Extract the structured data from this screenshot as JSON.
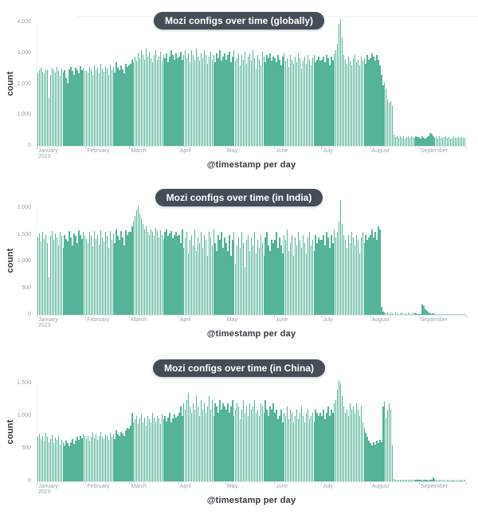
{
  "colors": {
    "bar": "#54b399",
    "pill_bg": "#454e58",
    "pill_text": "#ffffff",
    "tick_text": "#9aa5b2",
    "axis_title_text": "#343741",
    "axis_line": "#dde3ea"
  },
  "x_axis": {
    "total_days": 273,
    "months": [
      {
        "label": "January",
        "year": "2023",
        "day": 0
      },
      {
        "label": "February",
        "day": 31
      },
      {
        "label": "March",
        "day": 59
      },
      {
        "label": "April",
        "day": 90
      },
      {
        "label": "May",
        "day": 120
      },
      {
        "label": "June",
        "day": 151
      },
      {
        "label": "July",
        "day": 181
      },
      {
        "label": "August",
        "day": 212
      },
      {
        "label": "September",
        "day": 243
      }
    ]
  },
  "chart_data": [
    {
      "type": "bar",
      "title": "Mozi configs over time (globally)",
      "xlabel": "@timestamp per day",
      "ylabel": "count",
      "x_start": "January 2023",
      "x_end": "late September 2023",
      "ylim": [
        0,
        4000
      ],
      "yticks": [
        0,
        1000,
        2000,
        3000,
        4000
      ],
      "ytick_labels": [
        "0",
        "1,000",
        "2,000",
        "3,000",
        "4,000"
      ],
      "values": [
        2380,
        2450,
        2520,
        2410,
        2350,
        2480,
        2440,
        1560,
        2300,
        2520,
        2460,
        2380,
        2550,
        2420,
        2280,
        2500,
        2380,
        2450,
        2200,
        2050,
        2480,
        2560,
        2420,
        2300,
        2520,
        2460,
        2350,
        2580,
        2440,
        2500,
        2430,
        2420,
        2380,
        2550,
        2480,
        2300,
        2600,
        2450,
        2520,
        2360,
        2650,
        2480,
        2400,
        2580,
        2500,
        2300,
        2620,
        2450,
        2550,
        2380,
        2700,
        2520,
        2440,
        2600,
        2480,
        2350,
        2650,
        2550,
        2600,
        2650,
        2800,
        2700,
        2900,
        2750,
        3000,
        2850,
        3100,
        2950,
        2800,
        3150,
        2900,
        3050,
        2850,
        2700,
        2950,
        3100,
        2800,
        2900,
        3050,
        2750,
        2950,
        2850,
        3000,
        2700,
        2900,
        3100,
        2950,
        2800,
        3000,
        2850,
        2900,
        3050,
        2800,
        2950,
        3100,
        2850,
        3000,
        2700,
        3100,
        2950,
        2800,
        3150,
        2900,
        2750,
        3000,
        2850,
        3100,
        2950,
        2650,
        2900,
        3050,
        2800,
        2950,
        2700,
        3000,
        2850,
        3100,
        2750,
        2900,
        3000,
        2800,
        2950,
        3050,
        2700,
        2900,
        3100,
        2750,
        2850,
        3000,
        2600,
        2950,
        2800,
        3050,
        2650,
        2900,
        3000,
        2750,
        3100,
        2850,
        2500,
        2950,
        2800,
        2600,
        3050,
        2900,
        2700,
        2950,
        2850,
        3000,
        2750,
        2900,
        2850,
        2700,
        2950,
        2800,
        2600,
        2900,
        3000,
        2750,
        2850,
        2550,
        2950,
        2800,
        2650,
        2900,
        2700,
        3000,
        2850,
        2500,
        2750,
        2900,
        2650,
        2950,
        2800,
        2600,
        2850,
        2950,
        2700,
        2800,
        2900,
        2750,
        2800,
        2900,
        2700,
        2950,
        2850,
        2600,
        2900,
        2750,
        3000,
        3100,
        3300,
        3950,
        4100,
        3500,
        2950,
        2800,
        2650,
        2900,
        2750,
        2600,
        2850,
        2950,
        2700,
        2800,
        2600,
        2900,
        2750,
        2850,
        2650,
        2950,
        2800,
        2850,
        3000,
        2900,
        2750,
        2950,
        2800,
        2600,
        2300,
        1950,
        2050,
        1850,
        1500,
        1400,
        1450,
        1300,
        350,
        280,
        320,
        250,
        300,
        270,
        310,
        240,
        290,
        320,
        260,
        300,
        280,
        250,
        310,
        290,
        280,
        240,
        300,
        260,
        220,
        290,
        310,
        420,
        380,
        300,
        260,
        280,
        240,
        300,
        270,
        250,
        290,
        310,
        260,
        280,
        240,
        260,
        300,
        270,
        250,
        280,
        260,
        290,
        270,
        260
      ]
    },
    {
      "type": "bar",
      "title": "Mozi configs over time (in India)",
      "xlabel": "@timestamp per day",
      "ylabel": "count",
      "x_start": "January 2023",
      "x_end": "late September 2023",
      "ylim": [
        0,
        2000
      ],
      "yticks": [
        0,
        500,
        1000,
        1500,
        2000
      ],
      "ytick_labels": [
        "0",
        "500",
        "1,000",
        "1,500",
        "2,000"
      ],
      "values": [
        1450,
        1520,
        1380,
        1550,
        1420,
        1500,
        1350,
        700,
        1480,
        1560,
        1400,
        1520,
        1450,
        1300,
        1550,
        1480,
        1250,
        1500,
        1420,
        1380,
        1560,
        1450,
        1300,
        1520,
        1480,
        1350,
        1580,
        1500,
        1420,
        1550,
        1480,
        1420,
        1350,
        1550,
        1480,
        1280,
        1560,
        1420,
        1500,
        1320,
        1580,
        1450,
        1380,
        1550,
        1480,
        1250,
        1560,
        1400,
        1520,
        1350,
        1600,
        1480,
        1400,
        1560,
        1450,
        1300,
        1580,
        1500,
        1550,
        1550,
        1650,
        1750,
        1850,
        1950,
        2050,
        1900,
        1800,
        1700,
        1600,
        1650,
        1550,
        1500,
        1600,
        1550,
        1480,
        1620,
        1560,
        1450,
        1580,
        1500,
        1420,
        1550,
        1600,
        1480,
        1520,
        1560,
        1440,
        1500,
        1550,
        1480,
        1500,
        1350,
        1600,
        1250,
        1450,
        1550,
        1150,
        1400,
        1500,
        1300,
        1600,
        1200,
        1450,
        1350,
        1550,
        1250,
        1500,
        1400,
        1100,
        1550,
        1450,
        1300,
        1600,
        1350,
        1200,
        1500,
        1400,
        1550,
        1250,
        1450,
        1350,
        1200,
        1500,
        1100,
        1400,
        1550,
        950,
        1300,
        1450,
        1250,
        1550,
        1350,
        900,
        1400,
        1500,
        1200,
        1450,
        1300,
        1550,
        1150,
        1400,
        1250,
        1500,
        1350,
        1100,
        1450,
        1550,
        1300,
        1200,
        1400,
        1350,
        1400,
        1550,
        1250,
        1450,
        1300,
        1150,
        1500,
        1400,
        1600,
        1200,
        1350,
        1500,
        1100,
        1450,
        1300,
        1550,
        1400,
        1250,
        1500,
        1350,
        1150,
        1450,
        1550,
        1300,
        1400,
        1200,
        1500,
        1350,
        1450,
        1400,
        1400,
        1500,
        1300,
        1550,
        1450,
        1250,
        1500,
        1350,
        1600,
        1450,
        1550,
        1750,
        2150,
        1700,
        1500,
        1400,
        1250,
        1500,
        1350,
        1550,
        1450,
        1300,
        1500,
        1400,
        1150,
        1450,
        1550,
        1350,
        1500,
        1400,
        1450,
        1500,
        1600,
        1450,
        1550,
        1400,
        1650,
        1600,
        150,
        60,
        40,
        30,
        50,
        20,
        40,
        30,
        20,
        40,
        30,
        20,
        30,
        40,
        20,
        30,
        20,
        40,
        30,
        20,
        30,
        40,
        30,
        20,
        10,
        20,
        200,
        160,
        110,
        70,
        40,
        30,
        20,
        30,
        20,
        15,
        20,
        10,
        15,
        20,
        10,
        15,
        10,
        20,
        15,
        10,
        15,
        10,
        20,
        15,
        10,
        15,
        20,
        10
      ]
    },
    {
      "type": "bar",
      "title": "Mozi configs over time (in China)",
      "xlabel": "@timestamp per day",
      "ylabel": "count",
      "x_start": "January 2023",
      "x_end": "late September 2023",
      "ylim": [
        0,
        1500
      ],
      "yticks": [
        0,
        500,
        1000,
        1500
      ],
      "ytick_labels": [
        "0",
        "500",
        "1,000",
        "1,500"
      ],
      "values": [
        680,
        720,
        650,
        700,
        620,
        740,
        680,
        600,
        650,
        710,
        580,
        670,
        630,
        700,
        560,
        640,
        600,
        550,
        620,
        580,
        540,
        600,
        650,
        570,
        620,
        680,
        640,
        700,
        660,
        720,
        690,
        650,
        700,
        620,
        680,
        740,
        660,
        720,
        640,
        700,
        760,
        680,
        650,
        720,
        700,
        630,
        740,
        680,
        720,
        650,
        780,
        720,
        690,
        760,
        730,
        700,
        780,
        820,
        800,
        850,
        1050,
        900,
        950,
        1000,
        880,
        960,
        1020,
        900,
        980,
        850,
        1000,
        950,
        900,
        1050,
        980,
        920,
        1000,
        960,
        880,
        1020,
        950,
        1000,
        920,
        980,
        1050,
        900,
        960,
        1020,
        980,
        1000,
        1050,
        1150,
        1000,
        1200,
        1100,
        1250,
        1350,
        1150,
        1050,
        1200,
        1100,
        1300,
        1150,
        1000,
        1250,
        1100,
        1200,
        1050,
        1150,
        1300,
        1100,
        1250,
        1000,
        1200,
        1150,
        1050,
        1250,
        1100,
        1200,
        1150,
        1100,
        1200,
        1050,
        1150,
        1250,
        1000,
        1100,
        1200,
        1150,
        950,
        1100,
        1250,
        1050,
        1150,
        1000,
        1200,
        1100,
        1150,
        1250,
        1050,
        1100,
        1000,
        1200,
        1150,
        1050,
        1250,
        1100,
        1000,
        1150,
        1100,
        1200,
        1050,
        1100,
        950,
        1000,
        1100,
        900,
        1050,
        1000,
        1150,
        950,
        1100,
        1050,
        900,
        1000,
        1100,
        950,
        1050,
        1150,
        1000,
        900,
        1050,
        1100,
        950,
        1000,
        1050,
        900,
        1100,
        1050,
        1000,
        1050,
        1000,
        1100,
        950,
        1050,
        1150,
        1000,
        1100,
        1050,
        1200,
        1250,
        1400,
        1550,
        1500,
        1300,
        1150,
        1050,
        1100,
        1000,
        1200,
        1100,
        1150,
        1050,
        1200,
        1100,
        1000,
        1150,
        900,
        820,
        750,
        680,
        620,
        580,
        550,
        600,
        560,
        620,
        580,
        640,
        600,
        1150,
        1220,
        980,
        1080,
        1200,
        1100,
        550,
        40,
        30,
        20,
        30,
        25,
        20,
        30,
        25,
        20,
        30,
        25,
        20,
        30,
        25,
        20,
        30,
        20,
        25,
        15,
        20,
        30,
        20,
        15,
        25,
        20,
        60,
        40,
        20,
        15,
        20,
        25,
        15,
        20,
        15,
        25,
        20,
        15,
        20,
        25,
        15,
        20,
        15,
        20,
        25,
        15,
        20
      ]
    }
  ]
}
